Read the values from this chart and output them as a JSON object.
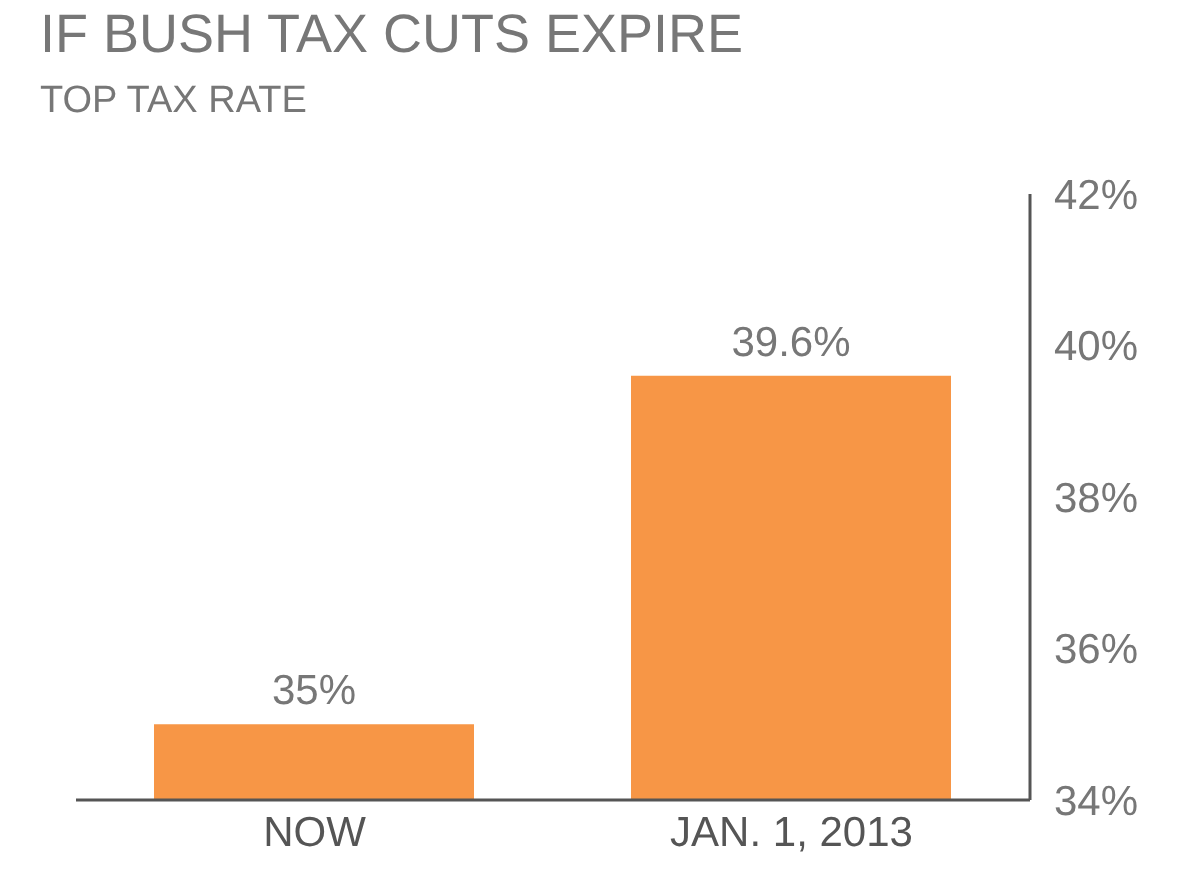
{
  "chart_data": {
    "type": "bar",
    "title": "IF BUSH TAX CUTS EXPIRE",
    "subtitle": "TOP TAX RATE",
    "categories": [
      "NOW",
      "JAN. 1, 2013"
    ],
    "values": [
      35,
      39.6
    ],
    "value_labels": [
      "35%",
      "39.6%"
    ],
    "color": "#f79646",
    "ylim": [
      34,
      42
    ],
    "yticks": [
      {
        "value": 34,
        "label": "34%"
      },
      {
        "value": 36,
        "label": "36%"
      },
      {
        "value": 38,
        "label": "38%"
      },
      {
        "value": 40,
        "label": "40%"
      },
      {
        "value": 42,
        "label": "42%"
      }
    ],
    "grid": false,
    "legend": false
  }
}
